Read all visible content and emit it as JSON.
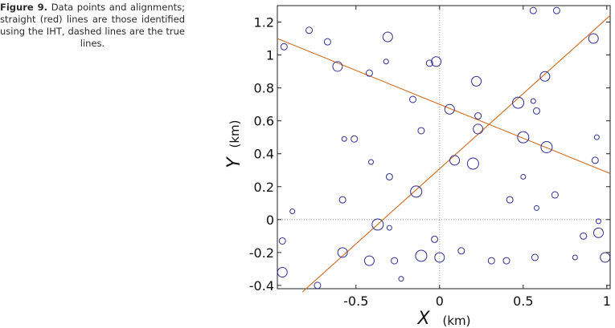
{
  "caption": {
    "lead": "Figure 9.",
    "text": "Data points and alignments; straight (red) lines are those identified using the IHT, dashed lines are the true lines."
  },
  "colors": {
    "points": "#2e2e9a",
    "lines": "#d2691e",
    "reference": "#9a9a9a"
  },
  "chart_data": {
    "type": "scatter",
    "xlabel": "X",
    "xunit": "(km)",
    "ylabel": "Y",
    "yunit": "(km)",
    "xlim": [
      -0.97,
      1.02
    ],
    "ylim": [
      -0.42,
      1.3
    ],
    "xticks": [
      -0.5,
      0,
      0.5,
      1
    ],
    "xticklabels": [
      "-0.5",
      "0",
      "0.5",
      "1"
    ],
    "yticks": [
      -0.4,
      -0.2,
      0,
      0.2,
      0.4,
      0.6,
      0.8,
      1,
      1.2
    ],
    "yticklabels": [
      "-0.4",
      "-0.2",
      "0",
      "0.2",
      "0.4",
      "0.6",
      "0.8",
      "1",
      "1.2"
    ],
    "grid": false,
    "reference_lines": {
      "x": 0,
      "y": 0,
      "style": "dotted"
    },
    "lines": [
      {
        "x": [
          -0.97,
          1.02
        ],
        "y": [
          1.1,
          0.28
        ]
      },
      {
        "x": [
          -0.82,
          1.02
        ],
        "y": [
          -0.44,
          1.24
        ]
      }
    ],
    "points": [
      {
        "x": -0.93,
        "y": 1.05,
        "m": 1
      },
      {
        "x": -0.78,
        "y": 1.15,
        "m": 1
      },
      {
        "x": -0.67,
        "y": 1.08,
        "m": 1
      },
      {
        "x": -0.61,
        "y": 0.93,
        "m": 2
      },
      {
        "x": -0.42,
        "y": 0.89,
        "m": 1
      },
      {
        "x": -0.32,
        "y": 0.96,
        "m": 0.5
      },
      {
        "x": -0.31,
        "y": 1.11,
        "m": 2
      },
      {
        "x": -0.06,
        "y": 0.95,
        "m": 1
      },
      {
        "x": -0.02,
        "y": 0.96,
        "m": 2
      },
      {
        "x": 0.22,
        "y": 0.84,
        "m": 2
      },
      {
        "x": 0.56,
        "y": 1.27,
        "m": 1
      },
      {
        "x": 0.7,
        "y": 1.27,
        "m": 1
      },
      {
        "x": 0.63,
        "y": 0.87,
        "m": 2
      },
      {
        "x": 0.92,
        "y": 1.1,
        "m": 2
      },
      {
        "x": -0.16,
        "y": 0.73,
        "m": 1
      },
      {
        "x": 0.06,
        "y": 0.67,
        "m": 2
      },
      {
        "x": 0.47,
        "y": 0.71,
        "m": 2.5
      },
      {
        "x": 0.56,
        "y": 0.72,
        "m": 0.5
      },
      {
        "x": 0.58,
        "y": 0.66,
        "m": 1
      },
      {
        "x": 0.23,
        "y": 0.63,
        "m": 1
      },
      {
        "x": 0.23,
        "y": 0.55,
        "m": 2
      },
      {
        "x": -0.11,
        "y": 0.54,
        "m": 1
      },
      {
        "x": -0.57,
        "y": 0.49,
        "m": 0.5
      },
      {
        "x": -0.51,
        "y": 0.49,
        "m": 1
      },
      {
        "x": 0.5,
        "y": 0.5,
        "m": 2.5
      },
      {
        "x": 0.64,
        "y": 0.44,
        "m": 2.5
      },
      {
        "x": 0.94,
        "y": 0.5,
        "m": 0.5
      },
      {
        "x": 0.09,
        "y": 0.36,
        "m": 2
      },
      {
        "x": 0.2,
        "y": 0.34,
        "m": 2.5
      },
      {
        "x": -0.41,
        "y": 0.35,
        "m": 0.5
      },
      {
        "x": 0.93,
        "y": 0.36,
        "m": 1
      },
      {
        "x": -0.3,
        "y": 0.26,
        "m": 1
      },
      {
        "x": 0.5,
        "y": 0.26,
        "m": 0.5
      },
      {
        "x": -0.14,
        "y": 0.17,
        "m": 2.5
      },
      {
        "x": -0.58,
        "y": 0.12,
        "m": 1
      },
      {
        "x": 0.42,
        "y": 0.12,
        "m": 1
      },
      {
        "x": 0.69,
        "y": 0.15,
        "m": 1
      },
      {
        "x": 0.58,
        "y": 0.07,
        "m": 0.5
      },
      {
        "x": -0.88,
        "y": 0.05,
        "m": 0.5
      },
      {
        "x": 0.95,
        "y": -0.01,
        "m": 0.5
      },
      {
        "x": -0.37,
        "y": -0.03,
        "m": 2.5
      },
      {
        "x": -0.3,
        "y": -0.05,
        "m": 0.5
      },
      {
        "x": 0.95,
        "y": -0.08,
        "m": 2
      },
      {
        "x": 0.86,
        "y": -0.1,
        "m": 1
      },
      {
        "x": -0.03,
        "y": -0.12,
        "m": 1
      },
      {
        "x": -0.94,
        "y": -0.13,
        "m": 1
      },
      {
        "x": -0.58,
        "y": -0.2,
        "m": 2
      },
      {
        "x": 0.13,
        "y": -0.19,
        "m": 1
      },
      {
        "x": -0.11,
        "y": -0.22,
        "m": 2.5
      },
      {
        "x": -0.42,
        "y": -0.25,
        "m": 2
      },
      {
        "x": -0.27,
        "y": -0.25,
        "m": 1
      },
      {
        "x": 0.0,
        "y": -0.23,
        "m": 2
      },
      {
        "x": 0.31,
        "y": -0.25,
        "m": 1
      },
      {
        "x": 0.4,
        "y": -0.25,
        "m": 1
      },
      {
        "x": 0.57,
        "y": -0.23,
        "m": 1
      },
      {
        "x": 0.81,
        "y": -0.23,
        "m": 0.5
      },
      {
        "x": 0.99,
        "y": -0.23,
        "m": 2
      },
      {
        "x": -0.94,
        "y": -0.32,
        "m": 2
      },
      {
        "x": -0.23,
        "y": -0.36,
        "m": 0.5
      },
      {
        "x": -0.73,
        "y": -0.4,
        "m": 1
      }
    ]
  }
}
